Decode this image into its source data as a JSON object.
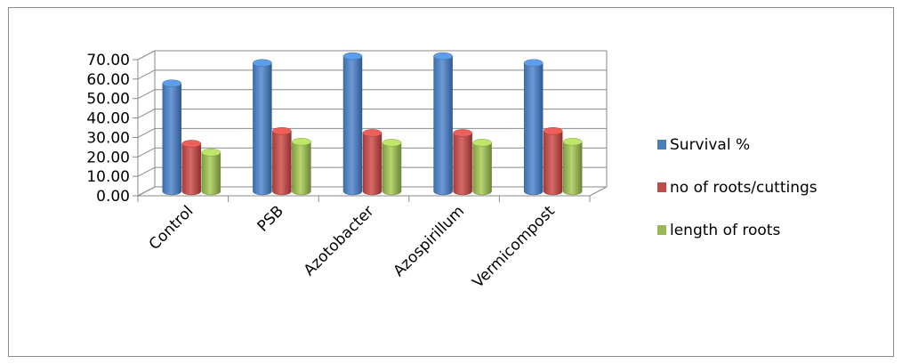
{
  "chart_data": {
    "type": "bar",
    "style": "3d-clustered-column",
    "categories": [
      "Control",
      "PSB",
      "Azotobacter",
      "Azospirillum",
      "Vermicompost"
    ],
    "series": [
      {
        "name": "Survival %",
        "values": [
          55.5,
          66.0,
          69.5,
          69.5,
          66.0
        ],
        "color": "#4a7ebb"
      },
      {
        "name": "no of roots/cuttings",
        "values": [
          24.5,
          31.0,
          30.0,
          30.0,
          31.0
        ],
        "color": "#be4b48"
      },
      {
        "name": "length of roots",
        "values": [
          20.0,
          25.5,
          25.0,
          25.0,
          25.5
        ],
        "color": "#98b954"
      }
    ],
    "yticks": [
      "0.00",
      "10.00",
      "20.00",
      "30.00",
      "40.00",
      "50.00",
      "60.00",
      "70.00"
    ],
    "ylim": [
      0,
      70
    ],
    "grid": true,
    "legend_position": "right"
  }
}
